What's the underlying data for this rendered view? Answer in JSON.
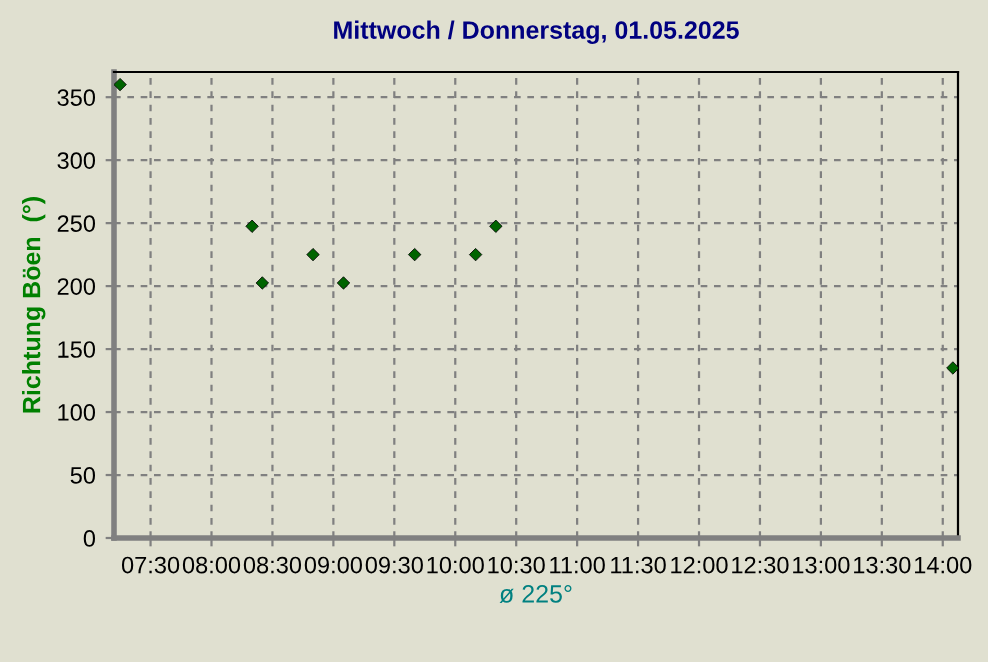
{
  "chart_data": {
    "type": "scatter",
    "title": "Mittwoch / Donnerstag, 01.05.2025",
    "ylabel": "Richtung Böen  (°)",
    "annotations": [
      "ø 225°"
    ],
    "x": [
      7.25,
      8.333,
      8.417,
      8.833,
      9.083,
      9.667,
      10.167,
      10.333,
      14.083
    ],
    "series": [
      {
        "color": "#006400",
        "values": [
          360,
          247.5,
          202.5,
          225,
          202.5,
          225,
          225,
          247.5,
          135
        ]
      }
    ],
    "xlim": [
      7.2,
      14.125
    ],
    "ylim": [
      0,
      370
    ],
    "xticks": [
      {
        "value": 7.5,
        "label": "07:30"
      },
      {
        "value": 8,
        "label": "08:00"
      },
      {
        "value": 8.5,
        "label": "08:30"
      },
      {
        "value": 9,
        "label": "09:00"
      },
      {
        "value": 9.5,
        "label": "09:30"
      },
      {
        "value": 10,
        "label": "10:00"
      },
      {
        "value": 10.5,
        "label": "10:30"
      },
      {
        "value": 11,
        "label": "11:00"
      },
      {
        "value": 11.5,
        "label": "11:30"
      },
      {
        "value": 12,
        "label": "12:00"
      },
      {
        "value": 12.5,
        "label": "12:30"
      },
      {
        "value": 13,
        "label": "13:00"
      },
      {
        "value": 13.5,
        "label": "13:30"
      },
      {
        "value": 14,
        "label": "14:00"
      }
    ],
    "yticks": [
      0,
      50,
      100,
      150,
      200,
      250,
      300,
      350
    ],
    "grid": true,
    "marker": "diamond",
    "legend": false
  }
}
